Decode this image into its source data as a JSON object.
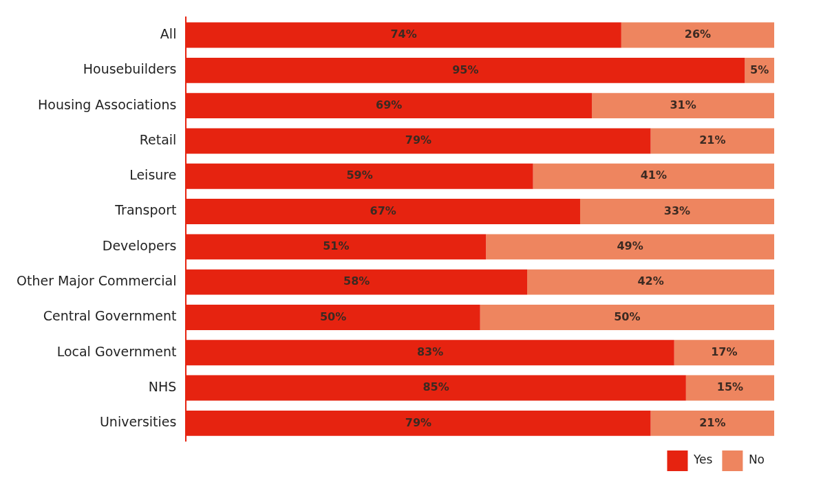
{
  "chart_data": {
    "type": "bar",
    "orientation": "horizontal",
    "stacked": true,
    "categories": [
      "All",
      "Housebuilders",
      "Housing Associations",
      "Retail",
      "Leisure",
      "Transport",
      "Developers",
      "Other Major Commercial",
      "Central Government",
      "Local Government",
      "NHS",
      "Universities"
    ],
    "series": [
      {
        "name": "Yes",
        "color": "#e62310",
        "values": [
          74,
          95,
          69,
          79,
          59,
          67,
          51,
          58,
          50,
          83,
          85,
          79
        ],
        "value_labels": [
          "74%",
          "95%",
          "69%",
          "79%",
          "59%",
          "67%",
          "51%",
          "58%",
          "50%",
          "83%",
          "85%",
          "79%"
        ]
      },
      {
        "name": "No",
        "color": "#ee855f",
        "values": [
          26,
          5,
          31,
          21,
          41,
          33,
          49,
          42,
          50,
          17,
          15,
          21
        ],
        "value_labels": [
          "26%",
          "5%",
          "31%",
          "21%",
          "41%",
          "33%",
          "49%",
          "42%",
          "50%",
          "17%",
          "15%",
          "21%"
        ]
      }
    ],
    "legend": "bottom right",
    "tick_labels": "y"
  }
}
